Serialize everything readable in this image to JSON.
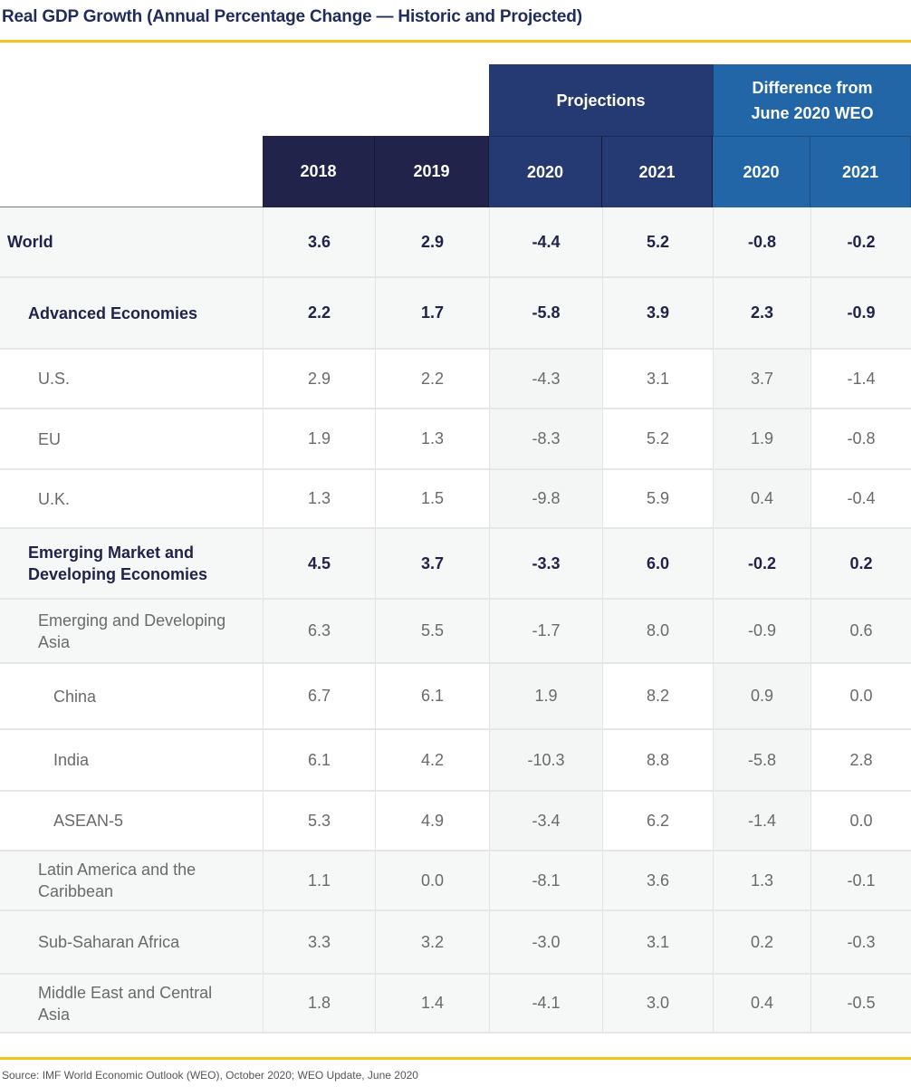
{
  "title": "Real GDP Growth (Annual Percentage Change — Historic and Projected)",
  "source": "Source: IMF World Economic Outlook (WEO), October 2020; WEO Update, June 2020",
  "colors": {
    "accent_rule": "#f3c41f",
    "historic_header": "#22234a",
    "projections_header": "#253a72",
    "difference_header": "#2266a8",
    "title_text": "#1f2d5c"
  },
  "header": {
    "groups": {
      "projections": "Projections",
      "difference": "Difference from June 2020 WEO"
    },
    "years": [
      "2018",
      "2019",
      "2020",
      "2021",
      "2020",
      "2021"
    ]
  },
  "chart_data": {
    "type": "table",
    "title": "Real GDP Growth (Annual Percentage Change — Historic and Projected)",
    "columns": [
      "2018",
      "2019",
      "Projections 2020",
      "Projections 2021",
      "Difference from June 2020 WEO 2020",
      "Difference from June 2020 WEO 2021"
    ],
    "rows": [
      {
        "label": "World",
        "level": 0,
        "bold": true,
        "values": [
          "3.6",
          "2.9",
          "-4.4",
          "5.2",
          "-0.8",
          "-0.2"
        ]
      },
      {
        "label": "Advanced Economies",
        "level": 1,
        "bold": true,
        "values": [
          "2.2",
          "1.7",
          "-5.8",
          "3.9",
          "2.3",
          "-0.9"
        ]
      },
      {
        "label": "U.S.",
        "level": 2,
        "bold": false,
        "values": [
          "2.9",
          "2.2",
          "-4.3",
          "3.1",
          "3.7",
          "-1.4"
        ]
      },
      {
        "label": "EU",
        "level": 2,
        "bold": false,
        "values": [
          "1.9",
          "1.3",
          "-8.3",
          "5.2",
          "1.9",
          "-0.8"
        ]
      },
      {
        "label": "U.K.",
        "level": 2,
        "bold": false,
        "values": [
          "1.3",
          "1.5",
          "-9.8",
          "5.9",
          "0.4",
          "-0.4"
        ]
      },
      {
        "label": "Emerging Market and Developing Economies",
        "level": 1,
        "bold": true,
        "values": [
          "4.5",
          "3.7",
          "-3.3",
          "6.0",
          "-0.2",
          "0.2"
        ]
      },
      {
        "label": "Emerging and Developing Asia",
        "level": 2,
        "bold": false,
        "values": [
          "6.3",
          "5.5",
          "-1.7",
          "8.0",
          "-0.9",
          "0.6"
        ]
      },
      {
        "label": "China",
        "level": 3,
        "bold": false,
        "values": [
          "6.7",
          "6.1",
          "1.9",
          "8.2",
          "0.9",
          "0.0"
        ]
      },
      {
        "label": "India",
        "level": 3,
        "bold": false,
        "values": [
          "6.1",
          "4.2",
          "-10.3",
          "8.8",
          "-5.8",
          "2.8"
        ]
      },
      {
        "label": "ASEAN-5",
        "level": 3,
        "bold": false,
        "values": [
          "5.3",
          "4.9",
          "-3.4",
          "6.2",
          "-1.4",
          "0.0"
        ]
      },
      {
        "label": "Latin America and the Caribbean",
        "level": 2,
        "bold": false,
        "values": [
          "1.1",
          "0.0",
          "-8.1",
          "3.6",
          "1.3",
          "-0.1"
        ]
      },
      {
        "label": "Sub-Saharan Africa",
        "level": 2,
        "bold": false,
        "values": [
          "3.3",
          "3.2",
          "-3.0",
          "3.1",
          "0.2",
          "-0.3"
        ]
      },
      {
        "label": "Middle East and Central Asia",
        "level": 2,
        "bold": false,
        "values": [
          "1.8",
          "1.4",
          "-4.1",
          "3.0",
          "0.4",
          "-0.5"
        ]
      }
    ]
  }
}
